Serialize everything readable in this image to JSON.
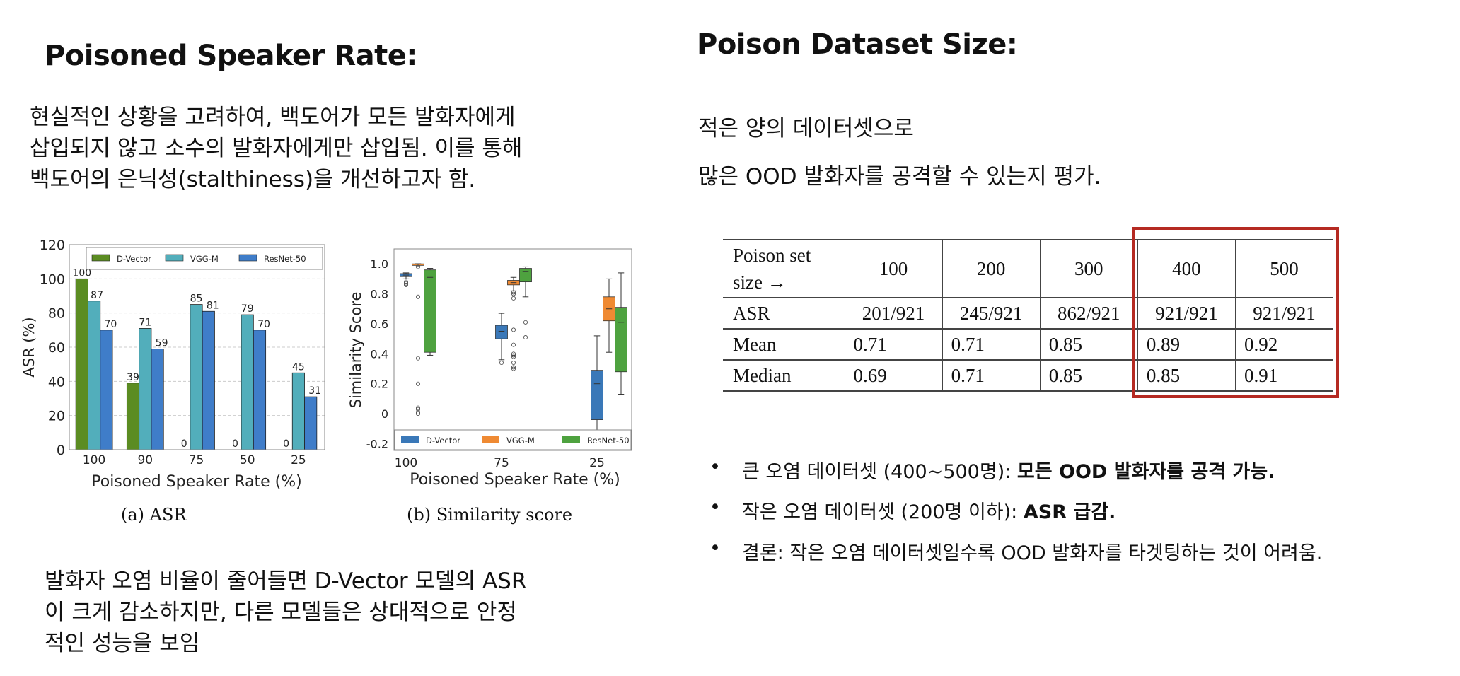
{
  "left": {
    "title": "Poisoned Speaker Rate:",
    "intro_lines": [
      "현실적인 상황을 고려하여, 백도어가 모든 발화자에게",
      "삽입되지 않고 소수의 발화자에게만 삽입됨. 이를 통해",
      "백도어의 은닉성(stalthiness)을 개선하고자 함."
    ],
    "caption_a": "(a)  ASR",
    "caption_b": "(b)  Similarity score",
    "conclusion_lines": [
      "발화자 오염 비율이 줄어들면 D-Vector 모델의 ASR",
      "이 크게 감소하지만, 다른 모델들은 상대적으로 안정",
      "적인 성능을 보임"
    ]
  },
  "right": {
    "title": "Poison Dataset Size:",
    "intro_lines": [
      "적은 양의 데이터셋으로",
      "많은 OOD 발화자를 공격할 수 있는지 평가."
    ],
    "table": {
      "header": [
        "Poison set",
        "size →"
      ],
      "columns": [
        "100",
        "200",
        "300",
        "400",
        "500"
      ],
      "rows": [
        {
          "label": "ASR",
          "values": [
            "201/921",
            "245/921",
            "862/921",
            "921/921",
            "921/921"
          ]
        },
        {
          "label": "Mean",
          "values": [
            "0.71",
            "0.71",
            "0.85",
            "0.89",
            "0.92"
          ]
        },
        {
          "label": "Median",
          "values": [
            "0.69",
            "0.71",
            "0.85",
            "0.85",
            "0.91"
          ]
        }
      ],
      "highlight_color": "#b52a22",
      "highlighted_columns": [
        "400",
        "500"
      ]
    },
    "bullets": [
      {
        "plain": "큰 오염 데이터셋 (400~500명): ",
        "bold": "모든 OOD 발화자를 공격 가능."
      },
      {
        "plain": "작은 오염 데이터셋 (200명 이하): ",
        "bold": "ASR 급감."
      },
      {
        "plain": "결론: 작은 오염 데이터셋일수록 OOD 발화자를 타겟팅하는 것이 어려움.",
        "bold": ""
      }
    ],
    "bullet_symbol": "•"
  },
  "chart_data": [
    {
      "type": "bar",
      "title": "",
      "xlabel": "Poisoned Speaker Rate (%)",
      "ylabel": "ASR (%)",
      "ylim": [
        0,
        120
      ],
      "yticks": [
        "0",
        "20",
        "40",
        "60",
        "80",
        "100",
        "120"
      ],
      "categories": [
        "100",
        "90",
        "75",
        "50",
        "25"
      ],
      "grid": "horizontal dashed",
      "legend": "top",
      "series": [
        {
          "name": "D-Vector",
          "color": "#5b8c22",
          "values": [
            100,
            39,
            0,
            0,
            0
          ]
        },
        {
          "name": "VGG-M",
          "color": "#52aebb",
          "values": [
            87,
            71,
            85,
            79,
            45
          ]
        },
        {
          "name": "ResNet-50",
          "color": "#3f7dc9",
          "values": [
            70,
            59,
            81,
            70,
            31
          ]
        }
      ]
    },
    {
      "type": "box",
      "title": "",
      "xlabel": "Poisoned Speaker Rate (%)",
      "ylabel": "Similarity Score",
      "ylim": [
        -0.245,
        1.1
      ],
      "yticks": [
        "-0.2",
        "0",
        "0.2",
        "0.4",
        "0.6",
        "0.8",
        "1.0"
      ],
      "categories": [
        "100",
        "75",
        "25"
      ],
      "legend": "bottom",
      "series": [
        {
          "name": "D-Vector",
          "color": "#3a78b8",
          "boxes": [
            {
              "whislo": 0.9,
              "q1": 0.915,
              "med": 0.925,
              "q3": 0.935,
              "whishi": 0.94,
              "fliers": [
                0.86,
                0.87,
                0.88
              ]
            },
            {
              "whislo": 0.36,
              "q1": 0.5,
              "med": 0.55,
              "q3": 0.59,
              "whishi": 0.67,
              "fliers": [
                0.34
              ]
            },
            {
              "whislo": -0.3,
              "q1": -0.04,
              "med": 0.2,
              "q3": 0.29,
              "whishi": 0.52,
              "fliers": []
            }
          ]
        },
        {
          "name": "VGG-M",
          "color": "#ef8a33",
          "boxes": [
            {
              "whislo": 0.98,
              "q1": 0.99,
              "med": 1.0,
              "q3": 1.0,
              "whishi": 1.0,
              "fliers": [
                0.98,
                0.78,
                0.37,
                0.2,
                0.04,
                0.03,
                0.01,
                0.0
              ]
            },
            {
              "whislo": 0.82,
              "q1": 0.86,
              "med": 0.875,
              "q3": 0.89,
              "whishi": 0.91,
              "fliers": [
                0.81,
                0.8,
                0.77,
                0.56,
                0.46,
                0.4,
                0.39,
                0.38,
                0.34,
                0.31,
                0.3
              ]
            },
            {
              "whislo": 0.41,
              "q1": 0.62,
              "med": 0.7,
              "q3": 0.78,
              "whishi": 0.9,
              "fliers": []
            }
          ]
        },
        {
          "name": "ResNet-50",
          "color": "#4ea23f",
          "boxes": [
            {
              "whislo": 0.39,
              "q1": 0.41,
              "med": 0.91,
              "q3": 0.96,
              "whishi": 0.97,
              "fliers": []
            },
            {
              "whislo": 0.78,
              "q1": 0.88,
              "med": 0.95,
              "q3": 0.97,
              "whishi": 0.98,
              "fliers": [
                0.61,
                0.51
              ]
            },
            {
              "whislo": 0.13,
              "q1": 0.28,
              "med": 0.61,
              "q3": 0.71,
              "whishi": 0.94,
              "fliers": []
            }
          ]
        }
      ]
    }
  ]
}
